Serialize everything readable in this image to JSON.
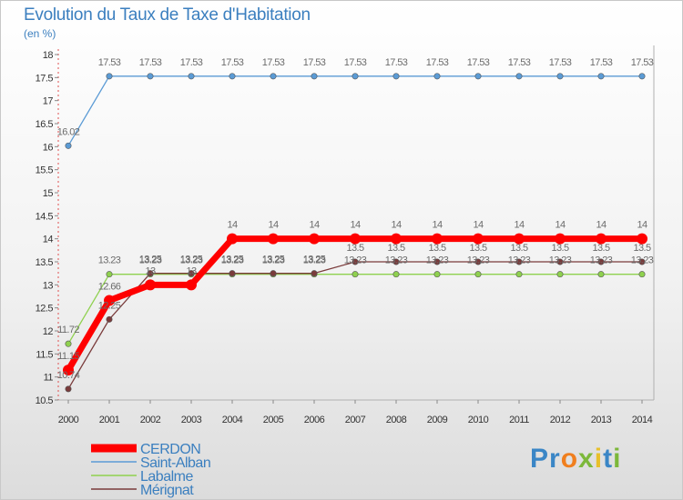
{
  "header": {
    "title": "Evolution du Taux de Taxe d'Habitation",
    "unit": "(en %)"
  },
  "logo": {
    "text": "Proxiti",
    "letters": [
      {
        "ch": "P",
        "color": "#3a86c6"
      },
      {
        "ch": "r",
        "color": "#3a86c6"
      },
      {
        "ch": "o",
        "color": "#f07f1e"
      },
      {
        "ch": "x",
        "color": "#7cb83a"
      },
      {
        "ch": "i",
        "color": "#e8c02a"
      },
      {
        "ch": "t",
        "color": "#3a86c6"
      },
      {
        "ch": "i",
        "color": "#7cb83a"
      }
    ]
  },
  "chart_data": {
    "type": "line",
    "title": "Evolution du Taux de Taxe d'Habitation",
    "ylabel": "(en %)",
    "xlabel": "",
    "x": [
      "2000",
      "2001",
      "2002",
      "2003",
      "2004",
      "2005",
      "2006",
      "2007",
      "2008",
      "2009",
      "2010",
      "2011",
      "2012",
      "2013",
      "2014"
    ],
    "ylim": [
      10.5,
      18
    ],
    "yticks": [
      "10.5",
      "11",
      "11.5",
      "12",
      "12.5",
      "13",
      "13.5",
      "14",
      "14.5",
      "15",
      "15.5",
      "16",
      "16.5",
      "17",
      "17.5",
      "18"
    ],
    "series": [
      {
        "name": "Saint-Alban",
        "color": "#5b9bd5",
        "values": [
          16.02,
          17.53,
          17.53,
          17.53,
          17.53,
          17.53,
          17.53,
          17.53,
          17.53,
          17.53,
          17.53,
          17.53,
          17.53,
          17.53,
          17.53
        ],
        "labels": [
          "16.02",
          "17.53",
          "17.53",
          "17.53",
          "17.53",
          "17.53",
          "17.53",
          "17.53",
          "17.53",
          "17.53",
          "17.53",
          "17.53",
          "17.53",
          "17.53",
          "17.53"
        ]
      },
      {
        "name": "Labalme",
        "color": "#8fd14f",
        "values": [
          11.72,
          13.23,
          13.23,
          13.23,
          13.23,
          13.23,
          13.23,
          13.23,
          13.23,
          13.23,
          13.23,
          13.23,
          13.23,
          13.23,
          13.23
        ],
        "labels": [
          "11.72",
          "13.23",
          "13.23",
          "13.23",
          "13.23",
          "13.23",
          "13.23",
          "13.23",
          "13.23",
          "13.23",
          "13.23",
          "13.23",
          "13.23",
          "13.23",
          "13.23"
        ]
      },
      {
        "name": "Mérignat",
        "color": "#7a3b3b",
        "values": [
          10.74,
          12.25,
          13.25,
          13.25,
          13.25,
          13.25,
          13.25,
          13.5,
          13.5,
          13.5,
          13.5,
          13.5,
          13.5,
          13.5,
          13.5
        ],
        "labels": [
          "10.74",
          "12.25",
          "13.25",
          "13.25",
          "13.25",
          "13.25",
          "13.25",
          "13.5",
          "13.5",
          "13.5",
          "13.5",
          "13.5",
          "13.5",
          "13.5",
          "13.5"
        ]
      },
      {
        "name": "CERDON",
        "color": "#ff0000",
        "values": [
          11.15,
          12.66,
          13,
          13,
          14,
          14,
          14,
          14,
          14,
          14,
          14,
          14,
          14,
          14,
          14
        ],
        "labels": [
          "11.15",
          "12.66",
          "13",
          "13",
          "14",
          "14",
          "14",
          "14",
          "14",
          "14",
          "14",
          "14",
          "14",
          "14",
          "14"
        ]
      }
    ],
    "legend": [
      "CERDON",
      "Saint-Alban",
      "Labalme",
      "Mérignat"
    ],
    "legend_position": "bottom-left",
    "grid": false
  }
}
